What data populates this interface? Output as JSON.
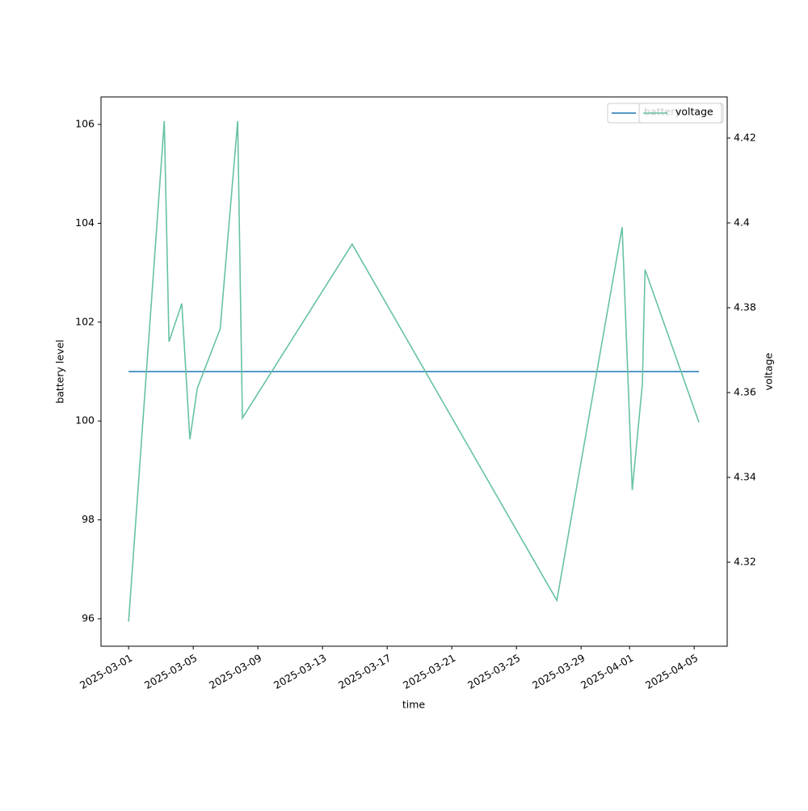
{
  "chart_data": {
    "type": "line",
    "x_label": "time",
    "y_label": "battery level",
    "y2_label": "voltage",
    "x": [
      "2025-03-01T00:00",
      "2025-03-03T05:00",
      "2025-03-03T12:00",
      "2025-03-04T07:00",
      "2025-03-04T19:00",
      "2025-03-05T06:00",
      "2025-03-06T16:00",
      "2025-03-07T18:00",
      "2025-03-08T01:00",
      "2025-03-14T20:00",
      "2025-03-27T12:00",
      "2025-03-31T13:00",
      "2025-04-01T04:00",
      "2025-04-01T19:00",
      "2025-04-01T23:00",
      "2025-04-05T07:00"
    ],
    "series": [
      {
        "name": "battery",
        "color": "#1f77b4",
        "values": [
          101,
          101,
          101,
          101,
          101,
          101,
          101,
          101,
          101,
          101,
          101,
          101,
          101,
          101,
          101,
          101
        ]
      },
      {
        "name": "voltage",
        "color": "#66c2a5",
        "axis": "y2",
        "values": [
          4.306,
          4.424,
          4.372,
          4.381,
          4.349,
          4.361,
          4.375,
          4.424,
          4.354,
          4.395,
          4.311,
          4.399,
          4.337,
          4.362,
          4.389,
          4.353
        ]
      }
    ],
    "xlim": [
      "2025-02-27T07:00",
      "2025-04-07T01:00"
    ],
    "xticks": [
      "2025-03-01",
      "2025-03-05",
      "2025-03-09",
      "2025-03-13",
      "2025-03-17",
      "2025-03-21",
      "2025-03-25",
      "2025-03-29",
      "2025-04-01",
      "2025-04-05"
    ],
    "ylim": [
      95.444,
      106.556
    ],
    "yticks": [
      96,
      98,
      100,
      102,
      104,
      106
    ],
    "y2lim": [
      4.3002,
      4.4297
    ],
    "y2ticks": [
      4.32,
      4.34,
      4.36,
      4.38,
      4.4,
      4.42
    ],
    "legend": "upper right",
    "grid": false
  }
}
